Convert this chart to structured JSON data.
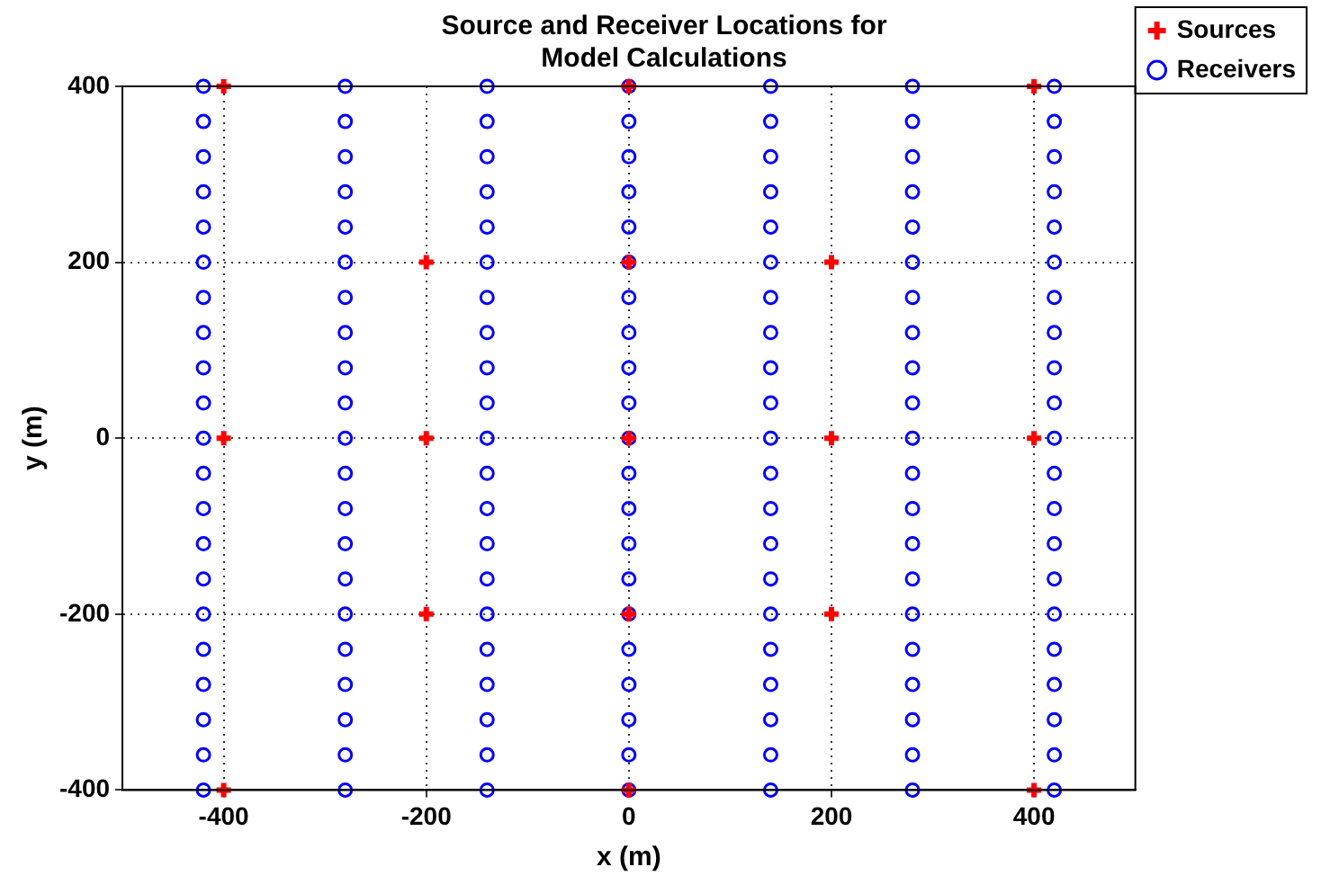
{
  "chart_data": {
    "type": "scatter",
    "title": "Source and Receiver Locations for\nModel Calculations",
    "xlabel": "x (m)",
    "ylabel": "y (m)",
    "xlim": [
      -500,
      500
    ],
    "ylim": [
      -400,
      400
    ],
    "xticks": [
      -400,
      -200,
      0,
      200,
      400
    ],
    "yticks": [
      -400,
      -200,
      0,
      200,
      400
    ],
    "grid": true,
    "legend": "top right",
    "series": [
      {
        "name": "Receivers",
        "color": "#0000ff",
        "marker": "circle",
        "x": [
          -420,
          -420,
          -420,
          -420,
          -420,
          -420,
          -420,
          -420,
          -420,
          -420,
          -420,
          -420,
          -420,
          -420,
          -420,
          -420,
          -420,
          -420,
          -420,
          -420,
          -420,
          -280,
          -280,
          -280,
          -280,
          -280,
          -280,
          -280,
          -280,
          -280,
          -280,
          -280,
          -280,
          -280,
          -280,
          -280,
          -280,
          -280,
          -280,
          -280,
          -280,
          -280,
          -140,
          -140,
          -140,
          -140,
          -140,
          -140,
          -140,
          -140,
          -140,
          -140,
          -140,
          -140,
          -140,
          -140,
          -140,
          -140,
          -140,
          -140,
          -140,
          -140,
          -140,
          0,
          0,
          0,
          0,
          0,
          0,
          0,
          0,
          0,
          0,
          0,
          0,
          0,
          0,
          0,
          0,
          0,
          0,
          0,
          0,
          0,
          140,
          140,
          140,
          140,
          140,
          140,
          140,
          140,
          140,
          140,
          140,
          140,
          140,
          140,
          140,
          140,
          140,
          140,
          140,
          140,
          140,
          280,
          280,
          280,
          280,
          280,
          280,
          280,
          280,
          280,
          280,
          280,
          280,
          280,
          280,
          280,
          280,
          280,
          280,
          280,
          280,
          280,
          420,
          420,
          420,
          420,
          420,
          420,
          420,
          420,
          420,
          420,
          420,
          420,
          420,
          420,
          420,
          420,
          420,
          420,
          420,
          420,
          420
        ],
        "values": [
          -400,
          -360,
          -320,
          -280,
          -240,
          -200,
          -160,
          -120,
          -80,
          -40,
          0,
          40,
          80,
          120,
          160,
          200,
          240,
          280,
          320,
          360,
          400,
          -400,
          -360,
          -320,
          -280,
          -240,
          -200,
          -160,
          -120,
          -80,
          -40,
          0,
          40,
          80,
          120,
          160,
          200,
          240,
          280,
          320,
          360,
          400,
          -400,
          -360,
          -320,
          -280,
          -240,
          -200,
          -160,
          -120,
          -80,
          -40,
          0,
          40,
          80,
          120,
          160,
          200,
          240,
          280,
          320,
          360,
          400,
          -400,
          -360,
          -320,
          -280,
          -240,
          -200,
          -160,
          -120,
          -80,
          -40,
          0,
          40,
          80,
          120,
          160,
          200,
          240,
          280,
          320,
          360,
          400,
          -400,
          -360,
          -320,
          -280,
          -240,
          -200,
          -160,
          -120,
          -80,
          -40,
          0,
          40,
          80,
          120,
          160,
          200,
          240,
          280,
          320,
          360,
          400,
          -400,
          -360,
          -320,
          -280,
          -240,
          -200,
          -160,
          -120,
          -80,
          -40,
          0,
          40,
          80,
          120,
          160,
          200,
          240,
          280,
          320,
          360,
          400,
          -400,
          -360,
          -320,
          -280,
          -240,
          -200,
          -160,
          -120,
          -80,
          -40,
          0,
          40,
          80,
          120,
          160,
          200,
          240,
          280,
          320,
          360,
          400
        ]
      },
      {
        "name": "Sources",
        "color": "#ff0000",
        "marker": "cross",
        "x": [
          -400,
          0,
          400,
          -200,
          0,
          200,
          -400,
          -200,
          0,
          200,
          400,
          -200,
          0,
          200,
          -400,
          0,
          400
        ],
        "values": [
          400,
          400,
          400,
          200,
          200,
          200,
          0,
          0,
          0,
          0,
          0,
          -200,
          -200,
          -200,
          -400,
          -400,
          -400
        ]
      }
    ]
  }
}
